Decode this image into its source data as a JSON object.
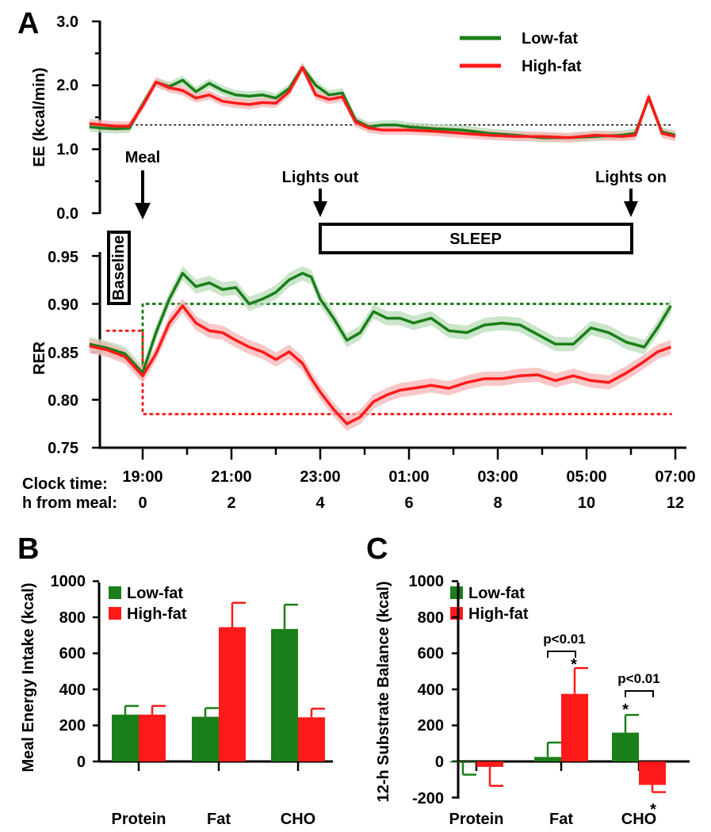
{
  "colors": {
    "low_fat": "#1a7f1a",
    "high_fat": "#ff1a1a",
    "low_fat_band": "#b8dcb8",
    "high_fat_band": "#f7b4b4",
    "axis": "#000000"
  },
  "panel_labels": {
    "a": "A",
    "b": "B",
    "c": "C"
  },
  "annotations": {
    "meal": "Meal",
    "lights_out": "Lights out",
    "lights_on": "Lights on",
    "sleep": "SLEEP",
    "baseline": "Baseline",
    "clock_time_label": "Clock time:",
    "hours_label": "h from meal:"
  },
  "chart_data": [
    {
      "id": "A-EE",
      "type": "line",
      "title": "",
      "ylabel": "EE (kcal/min)",
      "ylim": [
        0,
        3
      ],
      "yticks": [
        "0.0",
        "1.0",
        "2.0",
        "3.0"
      ],
      "xlim": [
        -1.3,
        12
      ],
      "reference_line": 1.38,
      "legend": [
        "Low-fat",
        "High-fat"
      ],
      "series": [
        {
          "name": "Low-fat",
          "x": [
            -1.2,
            -0.9,
            -0.6,
            -0.3,
            0,
            0.3,
            0.6,
            0.9,
            1.2,
            1.5,
            1.8,
            2.1,
            2.4,
            2.7,
            3,
            3.3,
            3.6,
            3.9,
            4.2,
            4.5,
            4.8,
            5.1,
            5.4,
            5.7,
            6,
            6.6,
            7.2,
            7.8,
            8.4,
            9,
            9.6,
            10.2,
            10.8,
            11.1,
            11.4,
            11.7,
            12
          ],
          "y": [
            1.35,
            1.33,
            1.32,
            1.33,
            1.7,
            2.05,
            1.98,
            2.08,
            1.9,
            2.03,
            1.92,
            1.85,
            1.83,
            1.85,
            1.8,
            1.95,
            2.28,
            2.0,
            1.85,
            1.88,
            1.45,
            1.35,
            1.38,
            1.38,
            1.35,
            1.32,
            1.3,
            1.25,
            1.22,
            1.18,
            1.18,
            1.2,
            1.22,
            1.25,
            1.8,
            1.27,
            1.22
          ]
        },
        {
          "name": "High-fat",
          "x": [
            -1.2,
            -0.9,
            -0.6,
            -0.3,
            0,
            0.3,
            0.6,
            0.9,
            1.2,
            1.5,
            1.8,
            2.1,
            2.4,
            2.7,
            3,
            3.3,
            3.6,
            3.9,
            4.2,
            4.5,
            4.8,
            5.1,
            5.4,
            5.7,
            6,
            6.6,
            7.2,
            7.8,
            8.4,
            9,
            9.6,
            10.2,
            10.8,
            11.1,
            11.4,
            11.7,
            12
          ],
          "y": [
            1.4,
            1.38,
            1.36,
            1.36,
            1.68,
            2.05,
            1.96,
            1.92,
            1.8,
            1.85,
            1.75,
            1.72,
            1.7,
            1.73,
            1.72,
            1.9,
            2.28,
            1.85,
            1.78,
            1.82,
            1.42,
            1.33,
            1.3,
            1.3,
            1.3,
            1.28,
            1.25,
            1.22,
            1.2,
            1.2,
            1.18,
            1.22,
            1.2,
            1.22,
            1.82,
            1.25,
            1.2
          ]
        }
      ]
    },
    {
      "id": "A-RER",
      "type": "line",
      "title": "",
      "ylabel": "RER",
      "ylim": [
        0.75,
        0.95
      ],
      "yticks": [
        "0.75",
        "0.80",
        "0.85",
        "0.90",
        "0.95"
      ],
      "xlim": [
        -1.3,
        12
      ],
      "xticks_clock": [
        "19:00",
        "21:00",
        "23:00",
        "01:00",
        "03:00",
        "05:00",
        "07:00"
      ],
      "xticks_hours": [
        "0",
        "2",
        "4",
        "6",
        "8",
        "10",
        "12"
      ],
      "reference_low_fat": 0.9,
      "reference_high_fat": [
        0.872,
        0.785
      ],
      "series": [
        {
          "name": "Low-fat",
          "x": [
            -1.2,
            -0.8,
            -0.4,
            0,
            0.3,
            0.6,
            0.9,
            1.2,
            1.5,
            1.8,
            2.1,
            2.4,
            2.7,
            3,
            3.3,
            3.6,
            3.8,
            4,
            4.3,
            4.6,
            4.9,
            5.2,
            5.5,
            5.8,
            6.1,
            6.5,
            6.9,
            7.3,
            7.7,
            8.1,
            8.5,
            8.9,
            9.3,
            9.7,
            10.1,
            10.5,
            10.9,
            11.3,
            11.6,
            11.9
          ],
          "y": [
            0.858,
            0.854,
            0.848,
            0.828,
            0.87,
            0.905,
            0.932,
            0.918,
            0.922,
            0.915,
            0.917,
            0.9,
            0.905,
            0.912,
            0.925,
            0.932,
            0.928,
            0.905,
            0.885,
            0.862,
            0.87,
            0.892,
            0.885,
            0.885,
            0.88,
            0.885,
            0.872,
            0.87,
            0.878,
            0.88,
            0.878,
            0.868,
            0.858,
            0.858,
            0.875,
            0.87,
            0.86,
            0.855,
            0.875,
            0.898
          ]
        },
        {
          "name": "High-fat",
          "x": [
            -1.2,
            -0.8,
            -0.4,
            0,
            0.3,
            0.6,
            0.9,
            1.2,
            1.5,
            1.8,
            2.1,
            2.4,
            2.7,
            3,
            3.3,
            3.6,
            3.8,
            4,
            4.3,
            4.6,
            4.9,
            5.2,
            5.5,
            5.8,
            6.1,
            6.5,
            6.9,
            7.3,
            7.7,
            8.1,
            8.5,
            8.9,
            9.3,
            9.7,
            10.1,
            10.5,
            10.9,
            11.3,
            11.6,
            11.9
          ],
          "y": [
            0.856,
            0.852,
            0.845,
            0.825,
            0.848,
            0.88,
            0.898,
            0.88,
            0.872,
            0.87,
            0.862,
            0.855,
            0.85,
            0.842,
            0.85,
            0.838,
            0.822,
            0.808,
            0.79,
            0.775,
            0.782,
            0.798,
            0.805,
            0.81,
            0.812,
            0.815,
            0.812,
            0.818,
            0.822,
            0.822,
            0.825,
            0.826,
            0.82,
            0.825,
            0.82,
            0.818,
            0.828,
            0.84,
            0.85,
            0.855
          ]
        }
      ]
    },
    {
      "id": "B",
      "type": "bar",
      "title": "",
      "ylabel": "Meal Energy Intake (kcal)",
      "ylim": [
        0,
        1000
      ],
      "yticks": [
        "0",
        "200",
        "400",
        "600",
        "800",
        "1000"
      ],
      "categories": [
        "Protein",
        "Fat",
        "CHO"
      ],
      "series": [
        {
          "name": "Low-fat",
          "values": [
            260,
            248,
            735
          ],
          "errors": [
            48,
            48,
            135
          ]
        },
        {
          "name": "High-fat",
          "values": [
            260,
            745,
            245
          ],
          "errors": [
            48,
            135,
            48
          ]
        }
      ]
    },
    {
      "id": "C",
      "type": "bar",
      "title": "",
      "ylabel": "12-h Substrate Balance (kcal)",
      "ylim": [
        -200,
        1000
      ],
      "yticks": [
        "-200",
        "0",
        "200",
        "400",
        "600",
        "800",
        "1000"
      ],
      "categories": [
        "Protein",
        "Fat",
        "CHO"
      ],
      "series": [
        {
          "name": "Low-fat",
          "values": [
            -3,
            25,
            160
          ],
          "errors": [
            70,
            80,
            98
          ]
        },
        {
          "name": "High-fat",
          "values": [
            -30,
            375,
            -130
          ],
          "errors": [
            105,
            143,
            40
          ]
        }
      ],
      "significance": [
        "p<0.01",
        "p<0.01"
      ],
      "star": "*"
    }
  ]
}
